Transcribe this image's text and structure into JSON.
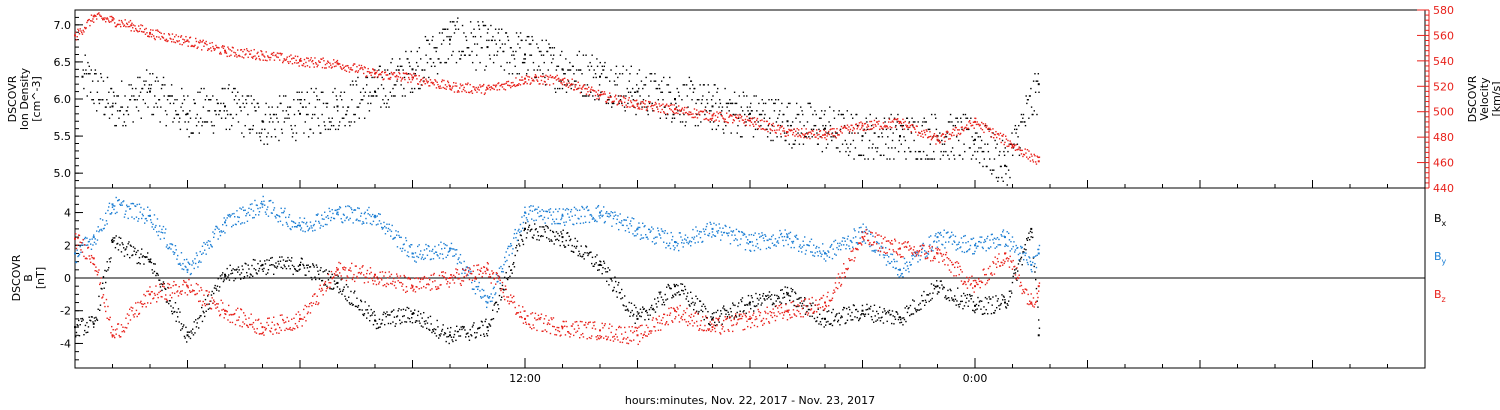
{
  "chart_data": [
    {
      "type": "scatter",
      "panel": "top",
      "ylabel": [
        "DSCOVR",
        "Ion Density",
        "[cm^-3]"
      ],
      "ylim": [
        4.8,
        7.2
      ],
      "yticks": [
        "5.0",
        "5.5",
        "6.0",
        "6.5",
        "7.0"
      ],
      "y2label": [
        "DSCOVR",
        "Velocity",
        "[km/s]"
      ],
      "y2lim": [
        440,
        580
      ],
      "y2ticks": [
        "440",
        "460",
        "480",
        "500",
        "520",
        "540",
        "560",
        "580"
      ],
      "xlim_hours": [
        0.0,
        36.0
      ],
      "series": [
        {
          "name": "Ion Density",
          "axis": "left",
          "color": "#000000",
          "x": [
            0.2,
            1,
            2,
            3,
            4,
            5,
            6,
            7,
            8,
            9,
            10,
            11,
            12,
            13,
            14,
            15,
            16,
            17,
            18,
            19,
            20,
            21,
            22,
            23,
            24,
            24.8,
            25.7
          ],
          "y": [
            6.3,
            5.9,
            6.1,
            5.8,
            5.9,
            5.7,
            5.8,
            5.9,
            6.1,
            6.4,
            6.8,
            6.7,
            6.6,
            6.4,
            6.3,
            6.1,
            6.0,
            5.9,
            5.8,
            5.7,
            5.6,
            5.5,
            5.5,
            5.5,
            5.45,
            5.1,
            6.2
          ]
        },
        {
          "name": "Velocity",
          "axis": "right",
          "color": "#e8211b",
          "x": [
            0,
            0.5,
            1,
            1.5,
            2,
            3,
            4,
            5,
            6,
            7,
            8,
            9,
            10,
            11,
            12,
            13,
            14,
            15,
            16,
            17,
            18,
            19,
            20,
            21,
            22,
            23,
            24,
            25,
            25.7
          ],
          "y": [
            560,
            575,
            572,
            568,
            562,
            556,
            548,
            545,
            540,
            538,
            530,
            527,
            520,
            518,
            526,
            525,
            513,
            506,
            502,
            497,
            493,
            484,
            482,
            489,
            492,
            478,
            492,
            474,
            461
          ]
        }
      ]
    },
    {
      "type": "scatter",
      "panel": "bottom",
      "ylabel": [
        "DSCOVR",
        "B",
        "[nT]"
      ],
      "ylim": [
        -5.5,
        5.5
      ],
      "yticks": [
        "-4",
        "-2",
        "0",
        "2",
        "4"
      ],
      "xlim_hours": [
        0.0,
        36.0
      ],
      "xticks": [
        "12:00",
        "0:00"
      ],
      "xlabel": "hours:minutes, Nov. 22, 2017 - Nov. 23, 2017",
      "series": [
        {
          "name": "Bx",
          "label_main": "B",
          "label_sub": "x",
          "color": "#000000",
          "x": [
            0,
            0.5,
            1,
            2,
            3,
            4,
            5,
            6,
            7,
            8,
            9,
            10,
            11,
            12,
            13,
            14,
            15,
            16,
            17,
            18,
            19,
            20,
            21,
            22,
            23,
            24,
            24.8,
            25.5,
            25.7
          ],
          "y": [
            -3,
            -2.8,
            2.2,
            1,
            -3.5,
            0.2,
            0.8,
            0.8,
            -0.3,
            -2.6,
            -2.2,
            -3.5,
            -3,
            3,
            2.5,
            0.8,
            -2.5,
            -0.5,
            -2.5,
            -1.5,
            -1,
            -2.5,
            -2,
            -2.4,
            -0.5,
            -1.7,
            -1.5,
            3,
            -3.5
          ]
        },
        {
          "name": "By",
          "label_main": "B",
          "label_sub": "y",
          "color": "#1d7fd4",
          "x": [
            0,
            0.5,
            1,
            2,
            3,
            4,
            5,
            6,
            7,
            8,
            9,
            10,
            11,
            12,
            13,
            14,
            15,
            16,
            17,
            18,
            19,
            20,
            21,
            22,
            23,
            24,
            24.8,
            25.5,
            25.7
          ],
          "y": [
            1.5,
            2.5,
            4.5,
            3.8,
            0.5,
            3.4,
            4.5,
            3.2,
            4,
            3.8,
            1.5,
            1.8,
            -1.5,
            4,
            3.8,
            4,
            3,
            2.2,
            3,
            2.2,
            2.5,
            1.5,
            2.8,
            0.5,
            2.5,
            2,
            2.5,
            0.8,
            1.5
          ]
        },
        {
          "name": "Bz",
          "label_main": "B",
          "label_sub": "z",
          "color": "#e8211b",
          "x": [
            0,
            0.5,
            1,
            2,
            3,
            4,
            5,
            6,
            7,
            8,
            9,
            10,
            11,
            12,
            13,
            14,
            15,
            16,
            17,
            18,
            19,
            20,
            21,
            22,
            23,
            24,
            24.8,
            25.5,
            25.7
          ],
          "y": [
            2.4,
            1.2,
            -3.5,
            -1,
            -0.5,
            -2,
            -3,
            -2.5,
            0.5,
            0.2,
            -0.5,
            0,
            0.5,
            -2.5,
            -3,
            -3.2,
            -3.5,
            -2,
            -3,
            -2.5,
            -2,
            -1.5,
            2.5,
            1.8,
            1.5,
            -0.5,
            1.5,
            -1.5,
            -0.5
          ]
        }
      ]
    }
  ]
}
